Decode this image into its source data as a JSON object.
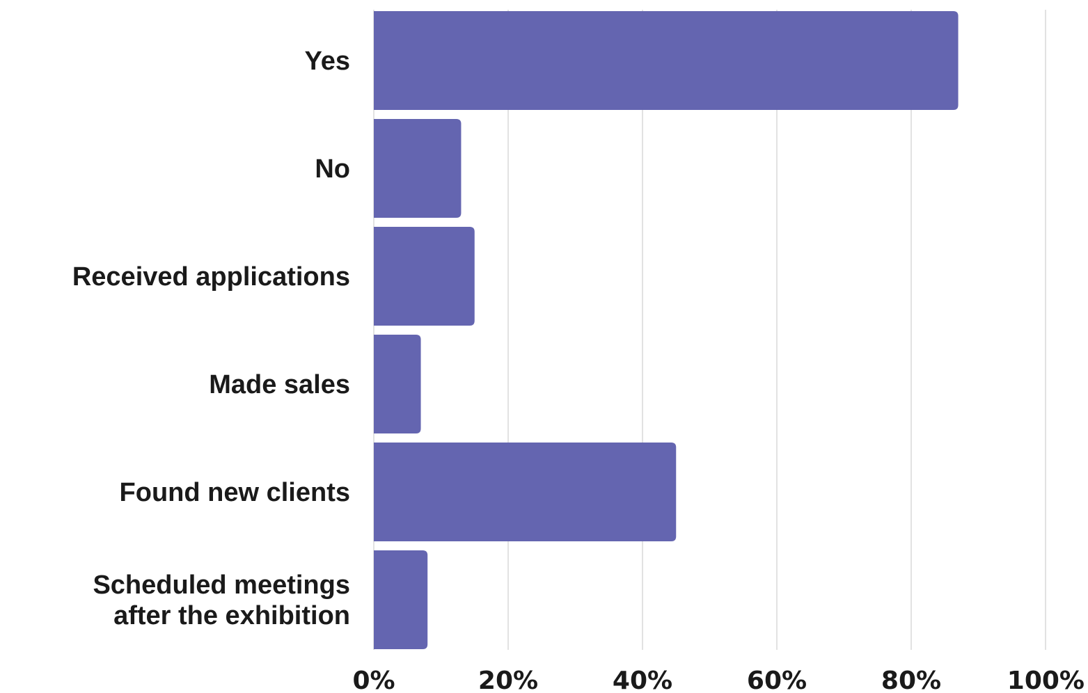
{
  "chart_data": {
    "type": "bar",
    "orientation": "horizontal",
    "categories": [
      [
        "Yes"
      ],
      [
        "No"
      ],
      [
        "Received applications"
      ],
      [
        "Made sales"
      ],
      [
        "Found new clients"
      ],
      [
        "Scheduled meetings",
        "after the exhibition"
      ]
    ],
    "values": [
      87,
      13,
      15,
      7,
      45,
      8
    ],
    "xlim": [
      0,
      100
    ],
    "x_ticks": [
      0,
      20,
      40,
      60,
      80,
      100
    ],
    "x_tick_labels": [
      "0%",
      "20%",
      "40%",
      "60%",
      "80%",
      "100%"
    ],
    "grid": true,
    "bar_color": "#6465b0",
    "title": "",
    "xlabel": "",
    "ylabel": ""
  }
}
